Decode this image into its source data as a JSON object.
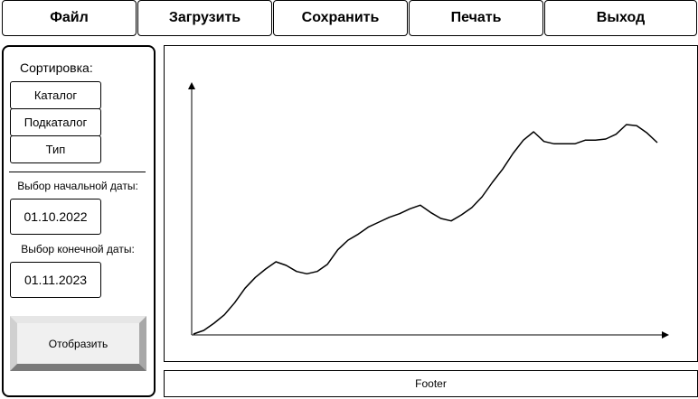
{
  "menu": {
    "file": "Файл",
    "load": "Загрузить",
    "save": "Сохранить",
    "print": "Печать",
    "exit": "Выход"
  },
  "sidebar": {
    "sort_title": "Сортировка:",
    "sort_options": [
      "Каталог",
      "Подкаталог",
      "Тип"
    ],
    "start_date_label": "Выбор начальной даты:",
    "start_date": "01.10.2022",
    "end_date_label": "Выбор конечной даты:",
    "end_date": "01.11.2023",
    "show_button": "Отобразить"
  },
  "footer": "Footer",
  "chart_data": {
    "type": "line",
    "title": "",
    "xlabel": "",
    "ylabel": "",
    "grid": false,
    "axis_ticks": false,
    "series": [
      {
        "values": [
          0,
          3,
          9,
          16,
          26,
          38,
          47,
          54,
          60,
          57,
          52,
          50,
          52,
          58,
          70,
          78,
          83,
          89,
          93,
          97,
          100,
          104,
          107,
          101,
          96,
          94,
          99,
          105,
          114,
          126,
          137,
          150,
          161,
          168,
          160,
          158,
          158,
          158,
          161,
          161,
          162,
          166,
          174,
          173,
          167,
          159
        ]
      }
    ]
  }
}
